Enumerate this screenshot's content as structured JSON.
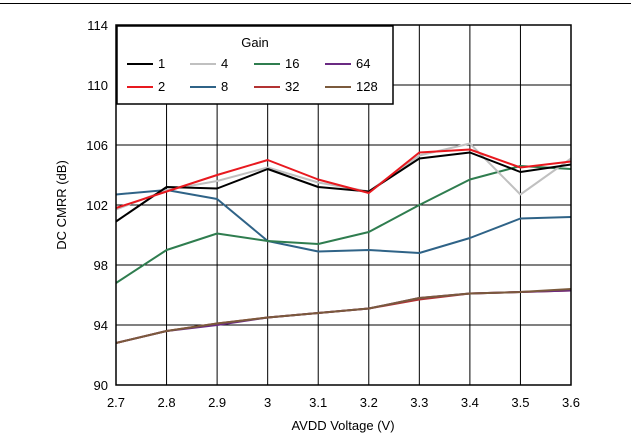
{
  "chart_data": {
    "type": "line",
    "title": "",
    "xlabel": "AVDD Voltage (V)",
    "ylabel": "DC CMRR (dB)",
    "xlim": [
      2.7,
      3.6
    ],
    "ylim": [
      90,
      114
    ],
    "x_ticks": [
      "2.7",
      "2.8",
      "2.9",
      "3",
      "3.1",
      "3.2",
      "3.3",
      "3.4",
      "3.5",
      "3.6"
    ],
    "y_ticks": [
      "90",
      "94",
      "98",
      "102",
      "106",
      "110",
      "114"
    ],
    "grid": true,
    "legend": {
      "title": "Gain",
      "placement": "top-left"
    },
    "x": [
      2.7,
      2.8,
      2.9,
      3.0,
      3.1,
      3.2,
      3.3,
      3.4,
      3.5,
      3.6
    ],
    "series": [
      {
        "name": "1",
        "color": "#000000",
        "values": [
          100.9,
          103.2,
          103.1,
          104.4,
          103.2,
          102.9,
          105.1,
          105.5,
          104.2,
          104.7
        ]
      },
      {
        "name": "2",
        "color": "#e8191f",
        "values": [
          101.8,
          102.9,
          104.0,
          105.0,
          103.7,
          102.8,
          105.5,
          105.7,
          104.5,
          104.9
        ]
      },
      {
        "name": "4",
        "color": "#c0c0c0",
        "values": [
          101.7,
          103.0,
          103.6,
          104.5,
          103.5,
          102.9,
          105.3,
          106.1,
          102.7,
          105.1
        ]
      },
      {
        "name": "8",
        "color": "#2f6387",
        "values": [
          102.7,
          103.0,
          102.4,
          99.6,
          98.9,
          99.0,
          98.8,
          99.8,
          101.1,
          101.2
        ]
      },
      {
        "name": "16",
        "color": "#2f7d4f",
        "values": [
          96.8,
          99.0,
          100.1,
          99.6,
          99.4,
          100.2,
          102.0,
          103.7,
          104.6,
          104.4
        ]
      },
      {
        "name": "32",
        "color": "#b33333",
        "values": [
          92.8,
          93.6,
          94.1,
          94.5,
          94.8,
          95.1,
          95.7,
          96.1,
          96.2,
          96.3
        ]
      },
      {
        "name": "64",
        "color": "#6a2a82",
        "values": [
          92.8,
          93.6,
          94.0,
          94.5,
          94.8,
          95.1,
          95.8,
          96.1,
          96.2,
          96.3
        ]
      },
      {
        "name": "128",
        "color": "#7b5a3c",
        "values": [
          92.8,
          93.6,
          94.1,
          94.5,
          94.8,
          95.1,
          95.8,
          96.1,
          96.2,
          96.4
        ]
      }
    ],
    "legend_order": [
      "1",
      "4",
      "16",
      "64",
      "2",
      "8",
      "32",
      "128"
    ]
  }
}
